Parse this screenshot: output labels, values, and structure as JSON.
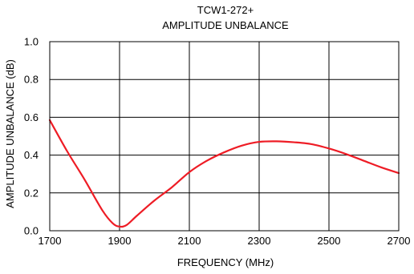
{
  "chart_data": {
    "type": "line",
    "title": "TCW1-272+",
    "subtitle": "AMPLITUDE UNBALANCE",
    "xlabel": "FREQUENCY (MHz)",
    "ylabel": "AMPLITUDE UNBALANCE (dB)",
    "xlim": [
      1700,
      2700
    ],
    "ylim": [
      0.0,
      1.0
    ],
    "x_ticks": [
      1700,
      1900,
      2100,
      2300,
      2500,
      2700
    ],
    "x_tick_labels": [
      "1700",
      "1900",
      "2100",
      "2300",
      "2500",
      "2700"
    ],
    "y_ticks": [
      0.0,
      0.2,
      0.4,
      0.6,
      0.8,
      1.0
    ],
    "y_tick_labels": [
      "0.0",
      "0.2",
      "0.4",
      "0.6",
      "0.8",
      "1.0"
    ],
    "grid": true,
    "series": [
      {
        "color": "#ee1c25",
        "x": [
          1700,
          1750,
          1800,
          1850,
          1880,
          1900,
          1920,
          1950,
          2000,
          2050,
          2100,
          2150,
          2200,
          2250,
          2300,
          2350,
          2400,
          2450,
          2500,
          2550,
          2600,
          2650,
          2700
        ],
        "y": [
          0.585,
          0.42,
          0.27,
          0.11,
          0.04,
          0.022,
          0.03,
          0.08,
          0.16,
          0.23,
          0.31,
          0.37,
          0.415,
          0.45,
          0.47,
          0.473,
          0.468,
          0.458,
          0.435,
          0.405,
          0.37,
          0.335,
          0.305
        ]
      }
    ]
  }
}
